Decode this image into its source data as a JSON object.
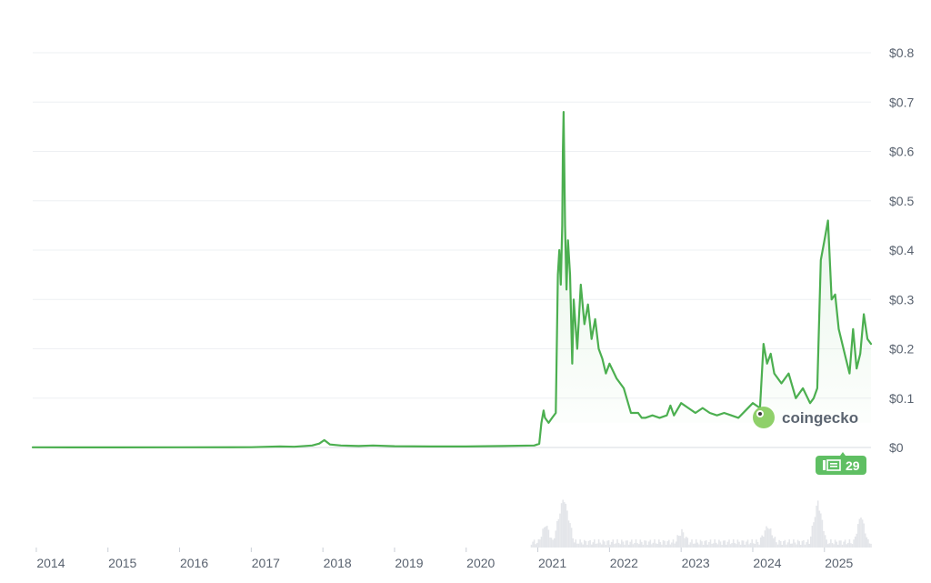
{
  "colors": {
    "line": "#4caf50",
    "area_top": "#c9e9cb",
    "volume": "#e4e6ea",
    "badge": "#5fbf63",
    "logo": "#8fd06a"
  },
  "brand": {
    "logo_text": "coingecko",
    "logo_icon": "gecko-icon"
  },
  "badge": {
    "icon": "news-icon",
    "count": "29"
  },
  "chart_data": {
    "type": "line",
    "title": "",
    "xlabel": "",
    "ylabel": "",
    "grid": true,
    "x_unit": "year",
    "ylim": [
      0,
      0.8
    ],
    "x_range": [
      2013.95,
      2025.65
    ],
    "y_ticks": [
      {
        "value": 0.8,
        "label": "$0.8"
      },
      {
        "value": 0.7,
        "label": "$0.7"
      },
      {
        "value": 0.6,
        "label": "$0.6"
      },
      {
        "value": 0.5,
        "label": "$0.5"
      },
      {
        "value": 0.4,
        "label": "$0.4"
      },
      {
        "value": 0.3,
        "label": "$0.3"
      },
      {
        "value": 0.2,
        "label": "$0.2"
      },
      {
        "value": 0.1,
        "label": "$0.1"
      },
      {
        "value": 0,
        "label": "$0"
      }
    ],
    "x_ticks": [
      {
        "value": 2014,
        "label": "2014"
      },
      {
        "value": 2015,
        "label": "2015"
      },
      {
        "value": 2016,
        "label": "2016"
      },
      {
        "value": 2017,
        "label": "2017"
      },
      {
        "value": 2018,
        "label": "2018"
      },
      {
        "value": 2019,
        "label": "2019"
      },
      {
        "value": 2020,
        "label": "2020"
      },
      {
        "value": 2021,
        "label": "2021"
      },
      {
        "value": 2022,
        "label": "2022"
      },
      {
        "value": 2023,
        "label": "2023"
      },
      {
        "value": 2024,
        "label": "2024"
      },
      {
        "value": 2025,
        "label": "2025"
      }
    ],
    "series": [
      {
        "x": [
          2013.95,
          2014.5,
          2015.0,
          2016.0,
          2017.0,
          2017.4,
          2017.6,
          2017.85,
          2017.95,
          2018.02,
          2018.1,
          2018.25,
          2018.5,
          2018.7,
          2019.0,
          2019.5,
          2020.0,
          2020.5,
          2020.95,
          2021.02,
          2021.05,
          2021.08,
          2021.1,
          2021.15,
          2021.2,
          2021.25,
          2021.28,
          2021.3,
          2021.32,
          2021.34,
          2021.35,
          2021.36,
          2021.38,
          2021.4,
          2021.42,
          2021.45,
          2021.48,
          2021.5,
          2021.55,
          2021.6,
          2021.65,
          2021.7,
          2021.75,
          2021.8,
          2021.85,
          2021.9,
          2021.95,
          2022.0,
          2022.1,
          2022.2,
          2022.3,
          2022.4,
          2022.45,
          2022.5,
          2022.6,
          2022.7,
          2022.8,
          2022.85,
          2022.9,
          2023.0,
          2023.1,
          2023.2,
          2023.3,
          2023.4,
          2023.5,
          2023.6,
          2023.7,
          2023.8,
          2023.9,
          2024.0,
          2024.1,
          2024.15,
          2024.2,
          2024.25,
          2024.3,
          2024.4,
          2024.5,
          2024.6,
          2024.7,
          2024.8,
          2024.85,
          2024.9,
          2024.95,
          2025.0,
          2025.05,
          2025.1,
          2025.15,
          2025.2,
          2025.3,
          2025.35,
          2025.4,
          2025.45,
          2025.5,
          2025.55,
          2025.6,
          2025.65
        ],
        "y": [
          0.0003,
          0.0002,
          0.0001,
          0.0003,
          0.0005,
          0.002,
          0.0015,
          0.004,
          0.008,
          0.015,
          0.006,
          0.004,
          0.003,
          0.004,
          0.0025,
          0.002,
          0.002,
          0.003,
          0.004,
          0.0075,
          0.05,
          0.075,
          0.06,
          0.05,
          0.06,
          0.07,
          0.35,
          0.4,
          0.33,
          0.45,
          0.6,
          0.68,
          0.45,
          0.32,
          0.42,
          0.35,
          0.17,
          0.3,
          0.2,
          0.33,
          0.25,
          0.29,
          0.22,
          0.26,
          0.2,
          0.18,
          0.15,
          0.17,
          0.14,
          0.12,
          0.07,
          0.07,
          0.06,
          0.06,
          0.065,
          0.06,
          0.065,
          0.085,
          0.065,
          0.09,
          0.08,
          0.07,
          0.08,
          0.07,
          0.065,
          0.07,
          0.065,
          0.06,
          0.075,
          0.09,
          0.08,
          0.21,
          0.17,
          0.19,
          0.15,
          0.13,
          0.15,
          0.1,
          0.12,
          0.09,
          0.1,
          0.12,
          0.38,
          0.42,
          0.46,
          0.3,
          0.31,
          0.24,
          0.18,
          0.15,
          0.24,
          0.16,
          0.19,
          0.27,
          0.22,
          0.21
        ]
      }
    ]
  }
}
